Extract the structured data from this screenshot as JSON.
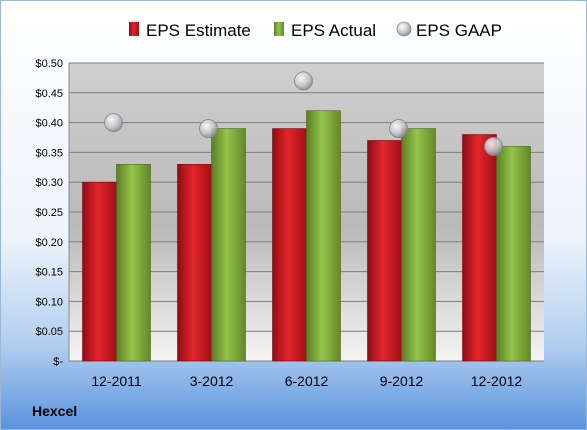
{
  "company": "Hexcel",
  "colors": {
    "estimate": "#c0141d",
    "actual": "#7aa13a",
    "gaap": "#b8bcc2"
  },
  "chart_data": {
    "type": "bar",
    "title": "",
    "xlabel": "",
    "ylabel": "",
    "categories": [
      "12-2011",
      "3-2012",
      "6-2012",
      "9-2012",
      "12-2012"
    ],
    "series": [
      {
        "name": "EPS Estimate",
        "type": "bar",
        "values": [
          0.3,
          0.33,
          0.39,
          0.37,
          0.38
        ]
      },
      {
        "name": "EPS Actual",
        "type": "bar",
        "values": [
          0.33,
          0.39,
          0.42,
          0.39,
          0.36
        ]
      },
      {
        "name": "EPS GAAP",
        "type": "marker",
        "values": [
          0.4,
          0.39,
          0.47,
          0.39,
          0.36
        ]
      }
    ],
    "ylim": [
      0,
      0.5
    ],
    "yticks": [
      0,
      0.05,
      0.1,
      0.15,
      0.2,
      0.25,
      0.3,
      0.35,
      0.4,
      0.45,
      0.5
    ],
    "ytick_labels": [
      "$-",
      "$0.05",
      "$0.10",
      "$0.15",
      "$0.20",
      "$0.25",
      "$0.30",
      "$0.35",
      "$0.40",
      "$0.45",
      "$0.50"
    ],
    "grid": true,
    "legend": "top"
  }
}
